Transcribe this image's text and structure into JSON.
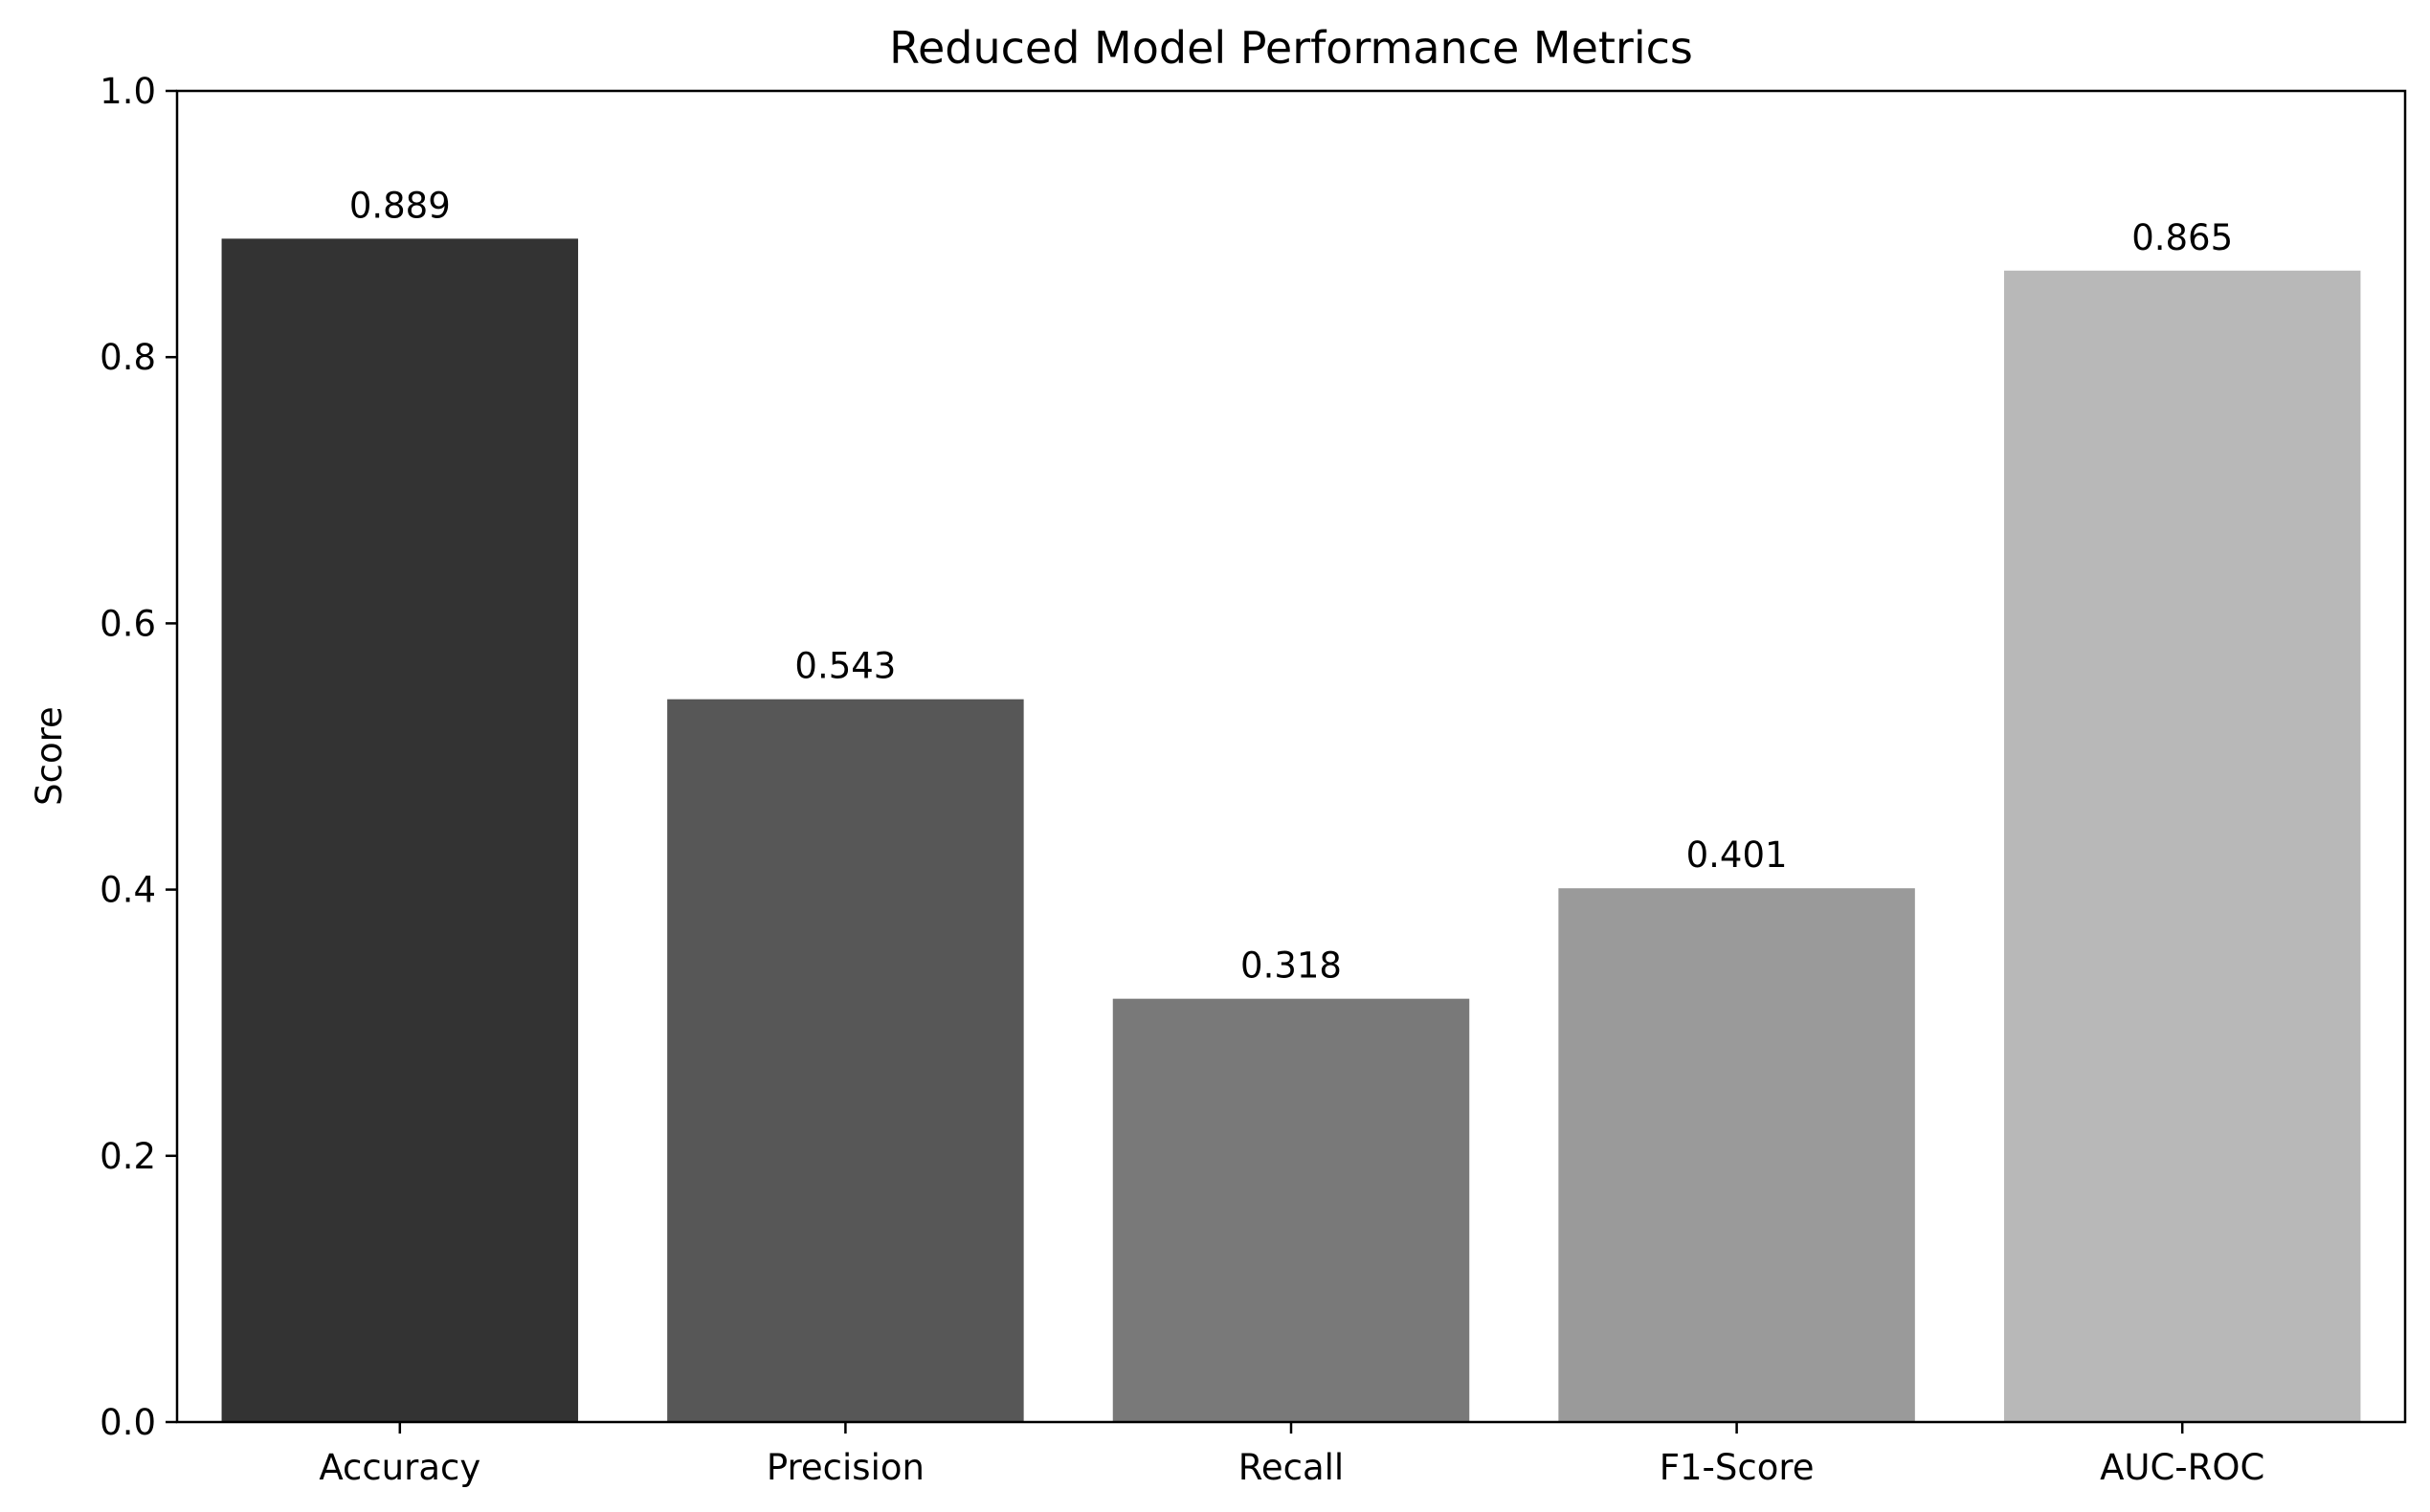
{
  "chart_data": {
    "type": "bar",
    "title": "Reduced Model Performance Metrics",
    "xlabel": "",
    "ylabel": "Score",
    "categories": [
      "Accuracy",
      "Precision",
      "Recall",
      "F1-Score",
      "AUC-ROC"
    ],
    "values": [
      0.889,
      0.543,
      0.318,
      0.401,
      0.865
    ],
    "value_labels": [
      "0.889",
      "0.543",
      "0.318",
      "0.401",
      "0.865"
    ],
    "bar_colors": [
      "#333333",
      "#575757",
      "#797979",
      "#9a9a9a",
      "#b8b8b8"
    ],
    "ylim": [
      0,
      1.0
    ],
    "yticks": [
      0.0,
      0.2,
      0.4,
      0.6,
      0.8,
      1.0
    ],
    "ytick_labels": [
      "0.0",
      "0.2",
      "0.4",
      "0.6",
      "0.8",
      "1.0"
    ],
    "grid": false,
    "legend": "none"
  }
}
